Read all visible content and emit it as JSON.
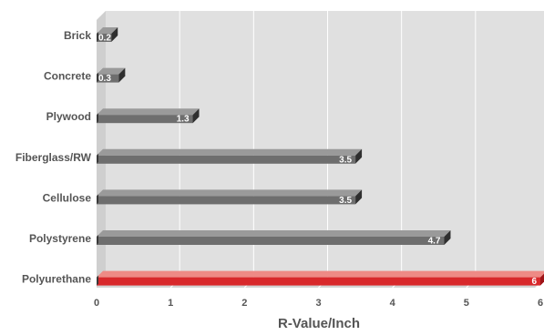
{
  "chart_data": {
    "type": "bar",
    "orientation": "horizontal",
    "categories": [
      "Brick",
      "Concrete",
      "Plywood",
      "Fiberglass/RW",
      "Cellulose",
      "Polystyrene",
      "Polyurethane"
    ],
    "values": [
      0.2,
      0.3,
      1.3,
      3.5,
      3.5,
      4.7,
      6
    ],
    "value_labels": [
      "0.2",
      "0.3",
      "1.3",
      "3.5",
      "3.5",
      "4.7",
      "6"
    ],
    "highlight": "Polyurethane",
    "xlabel": "R-Value/Inch",
    "ylabel": "",
    "xlim": [
      0,
      6
    ],
    "xticks": [
      "0",
      "1",
      "2",
      "3",
      "4",
      "5",
      "6"
    ],
    "grid": true,
    "colors": {
      "bar": "#6e6e6e",
      "bar_top": "#9a9a9a",
      "bar_end": "#2f2f2f",
      "highlight": "#d8282b",
      "highlight_top": "#ee8a85",
      "highlight_end": "#9e1418",
      "plot_bg": "#e0e0e0",
      "grid": "#ffffff",
      "text": "#555555"
    }
  }
}
